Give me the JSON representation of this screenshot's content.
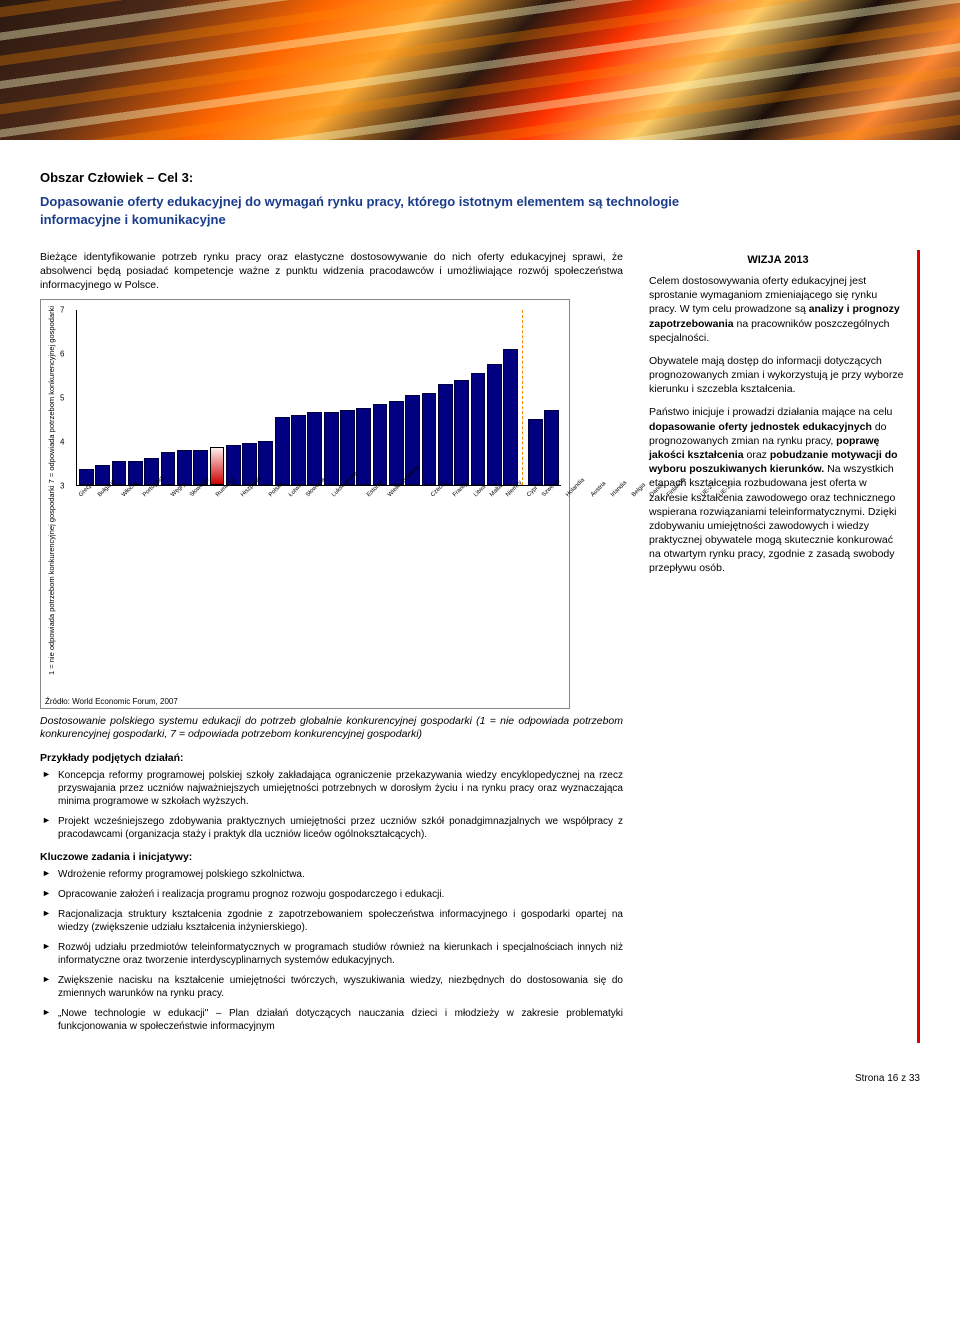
{
  "heading": "Obszar Człowiek – Cel 3:",
  "subheading": "Dopasowanie oferty edukacyjnej do wymagań rynku pracy, którego istotnym elementem są technologie informacyjne i komunikacyjne",
  "intro": "Bieżące identyfikowanie potrzeb rynku pracy oraz elastyczne dostosowywanie do nich oferty edukacyjnej sprawi, że absolwenci będą posiadać kompetencje ważne z punktu widzenia pracodawców i umożliwiające rozwój społeczeństwa informacyjnego w Polsce.",
  "chart": {
    "ylabel": "1 = nie odpowiada potrzebom konkurencyjnej gospodarki\n7 = odpowiada potrzebom konkurencyjnej gospodarki",
    "ymin": 3,
    "ymax": 7,
    "yticks": [
      3,
      4,
      5,
      6,
      7
    ],
    "countries": [
      "Grecja",
      "Bułgaria",
      "Włochy",
      "Portugalia",
      "Węgry",
      "Słowacja",
      "Rumunia",
      "Hiszpania",
      "Polska",
      "Łotwa",
      "Słowenia",
      "Luksemburg",
      "Estonia",
      "Wielka Brytania",
      "Czechy",
      "Francja",
      "Litwa",
      "Malta",
      "Niemcy",
      "Cypr",
      "Szwecja",
      "Holandia",
      "Austria",
      "Irlandia",
      "Belgia",
      "Dania",
      "Finlandia"
    ],
    "values": [
      3.35,
      3.45,
      3.55,
      3.55,
      3.6,
      3.75,
      3.8,
      3.8,
      3.85,
      3.9,
      3.95,
      4.0,
      4.55,
      4.6,
      4.65,
      4.65,
      4.7,
      4.75,
      4.85,
      4.9,
      5.05,
      5.1,
      5.3,
      5.4,
      5.55,
      5.75,
      6.1
    ],
    "groups": [
      "UE-27",
      "UE-15"
    ],
    "group_values": [
      4.5,
      4.7
    ],
    "poland_index": 8,
    "bar_color": "#000080",
    "source": "Źródło: World Economic Forum, 2007"
  },
  "caption": "Dostosowanie polskiego systemu edukacji do potrzeb globalnie konkurencyjnej gospodarki (1 = nie odpowiada potrzebom konkurencyjnej gospodarki, 7 = odpowiada potrzebom konkurencyjnej gospodarki)",
  "examples_head": "Przykłady podjętych działań:",
  "examples": [
    "Koncepcja reformy programowej polskiej szkoły zakładająca ograniczenie przekazywania wiedzy encyklopedycznej na rzecz przyswajania przez uczniów najważniejszych umiejętności potrzebnych w dorosłym życiu i na rynku pracy oraz wyznaczająca minima programowe w szkołach wyższych.",
    "Projekt wcześniejszego zdobywania praktycznych umiejętności przez uczniów szkół ponadgimnazjalnych we współpracy z pracodawcami (organizacja staży i praktyk dla uczniów liceów ogólnokształcących)."
  ],
  "tasks_head": "Kluczowe zadania i inicjatywy:",
  "tasks": [
    "Wdrożenie reformy programowej polskiego szkolnictwa.",
    "Opracowanie założeń i realizacja programu prognoz rozwoju gospodarczego i edukacji.",
    "Racjonalizacja struktury kształcenia zgodnie z zapotrzebowaniem społeczeństwa informacyjnego i gospodarki opartej na wiedzy (zwiększenie udziału kształcenia inżynierskiego).",
    "Rozwój udziału przedmiotów teleinformatycznych w programach studiów również na kierunkach i specjalnościach innych niż informatyczne oraz tworzenie interdyscyplinarnych systemów edukacyjnych.",
    "Zwiększenie nacisku na kształcenie umiejętności twórczych, wyszukiwania wiedzy, niezbędnych do dostosowania się do zmiennych warunków na rynku pracy.",
    "„Nowe technologie w edukacji\" – Plan działań dotyczących nauczania dzieci i młodzieży w zakresie problematyki funkcjonowania w społeczeństwie informacyjnym"
  ],
  "vision": {
    "title": "WIZJA 2013",
    "p1a": "Celem dostosowywania oferty edukacyjnej jest sprostanie wymaganiom zmieniającego się rynku pracy. W tym celu prowadzone są ",
    "p1b": "analizy i prognozy zapotrzebowania",
    "p1c": " na pracowników poszczególnych specjalności.",
    "p2": "Obywatele mają dostęp do informacji dotyczących prognozowanych zmian i wykorzystują je przy wyborze kierunku i szczebla kształcenia.",
    "p3a": "Państwo inicjuje i prowadzi działania mające na celu ",
    "p3b": "dopasowanie oferty jednostek edukacyjnych",
    "p3c": " do prognozowanych zmian na rynku pracy, ",
    "p3d": "poprawę jakości kształcenia",
    "p3e": " oraz ",
    "p3f": "pobudzanie motywacji do wyboru poszukiwanych kierunków.",
    "p3g": " Na wszystkich etapach kształcenia rozbudowana jest oferta w zakresie kształcenia zawodowego oraz technicznego wspierana rozwiązaniami teleinformatycznymi. Dzięki zdobywaniu umiejętności zawodowych i wiedzy praktycznej obywatele mogą skutecznie konkurować na otwartym rynku pracy, zgodnie z zasadą swobody przepływu osób."
  },
  "footer": "Strona 16 z 33"
}
